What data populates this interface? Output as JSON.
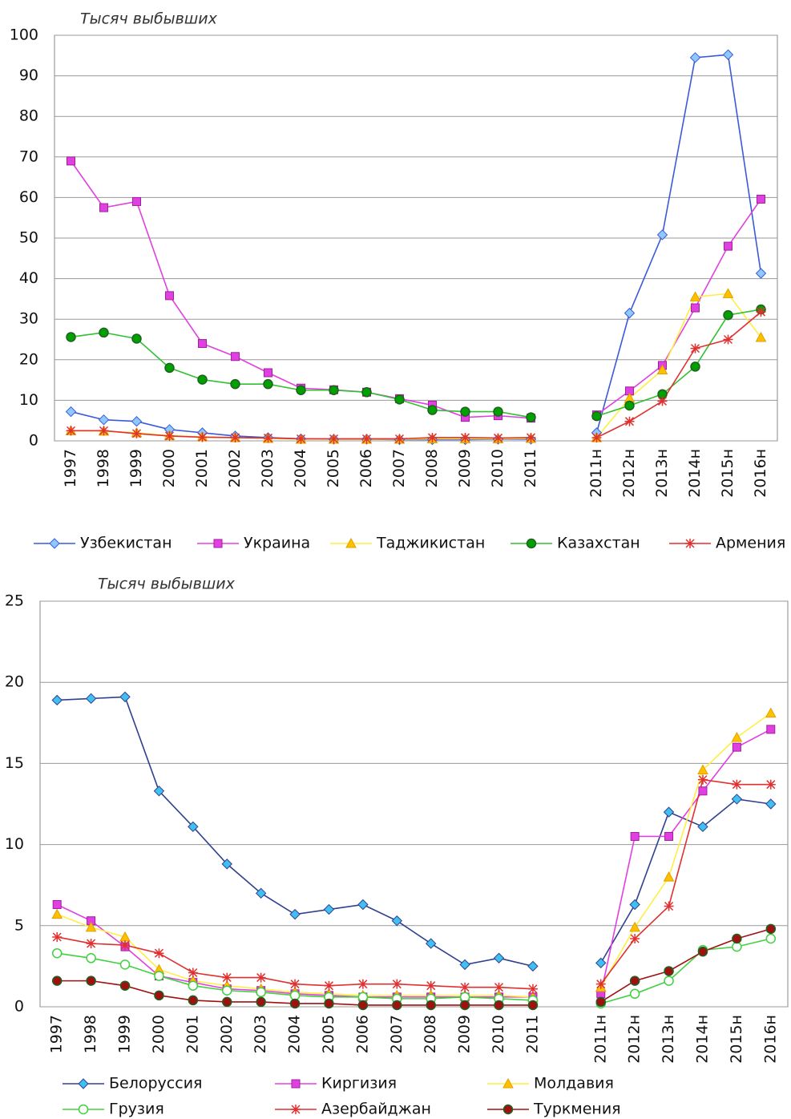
{
  "chart_data": [
    {
      "type": "line",
      "ylabel": "Тысяч выбывших",
      "categories": [
        "1997",
        "1998",
        "1999",
        "2000",
        "2001",
        "2002",
        "2003",
        "2004",
        "2005",
        "2006",
        "2007",
        "2008",
        "2009",
        "2010",
        "2011",
        null,
        "2011н",
        "2012н",
        "2013н",
        "2014н",
        "2015н",
        "2016н"
      ],
      "ylim": [
        0,
        100
      ],
      "yticks": [
        0,
        10,
        20,
        30,
        40,
        50,
        60,
        70,
        80,
        90,
        100
      ],
      "grid": true,
      "series": [
        {
          "name": "Узбекистан",
          "color": "#3a5ad8",
          "marker": "diamond",
          "marker_color": "#8ec8ff",
          "values": [
            7.2,
            5.2,
            4.8,
            2.8,
            2.0,
            1.2,
            0.8,
            0.5,
            0.4,
            0.4,
            0.3,
            0.3,
            0.3,
            0.4,
            0.4,
            null,
            2,
            31.5,
            50.8,
            94.5,
            95.2,
            41.3
          ]
        },
        {
          "name": "Украина",
          "color": "#e040e0",
          "marker": "square",
          "marker_color": "#e040e0",
          "values": [
            69,
            57.5,
            59,
            35.8,
            24,
            20.8,
            16.8,
            13,
            12.6,
            12,
            10.4,
            8.8,
            5.8,
            6.2,
            5.6,
            null,
            6.4,
            12.3,
            18.6,
            32.8,
            48,
            59.6
          ]
        },
        {
          "name": "Таджикистан",
          "color": "#ffee44",
          "marker": "triangle",
          "marker_color": "#ffc000",
          "values": [
            2.5,
            2.4,
            2,
            1.3,
            1.0,
            0.8,
            0.6,
            0.4,
            0.4,
            0.4,
            0.4,
            0.5,
            0.5,
            0.5,
            0.6,
            null,
            0.8,
            10.5,
            17.5,
            35.5,
            36.3,
            25.5
          ]
        },
        {
          "name": "Казахстан",
          "color": "#30c030",
          "marker": "circle",
          "marker_color": "#00a000",
          "values": [
            25.6,
            26.7,
            25.2,
            18,
            15.1,
            14,
            14,
            12.5,
            12.5,
            12,
            10.2,
            7.6,
            7.2,
            7.2,
            5.8,
            null,
            6.1,
            8.7,
            11.5,
            18.3,
            31,
            32.4
          ]
        },
        {
          "name": "Армения",
          "color": "#e03030",
          "marker": "star",
          "marker_color": "#e03030",
          "values": [
            2.5,
            2.5,
            1.8,
            1.2,
            0.9,
            0.8,
            0.7,
            0.5,
            0.5,
            0.5,
            0.5,
            0.8,
            0.8,
            0.7,
            0.8,
            null,
            0.8,
            4.8,
            9.8,
            22.8,
            25,
            31.8
          ]
        }
      ]
    },
    {
      "type": "line",
      "ylabel": "Тысяч выбывших",
      "categories": [
        "1997",
        "1998",
        "1999",
        "2000",
        "2001",
        "2002",
        "2003",
        "2004",
        "2005",
        "2006",
        "2007",
        "2008",
        "2009",
        "2010",
        "2011",
        null,
        "2011н",
        "2012н",
        "2013н",
        "2014н",
        "2015н",
        "2016н"
      ],
      "ylim": [
        0,
        25
      ],
      "yticks": [
        0,
        5,
        10,
        15,
        20,
        25
      ],
      "grid": true,
      "series": [
        {
          "name": "Белоруссия",
          "color": "#304090",
          "marker": "diamond",
          "marker_color": "#40c0f0",
          "values": [
            18.9,
            19,
            19.1,
            13.3,
            11.1,
            8.8,
            7,
            5.7,
            6,
            6.3,
            5.3,
            3.9,
            2.6,
            3,
            2.5,
            null,
            2.7,
            6.3,
            12,
            11.1,
            12.8,
            12.5
          ]
        },
        {
          "name": "Киргизия",
          "color": "#e040e0",
          "marker": "square",
          "marker_color": "#e040e0",
          "values": [
            6.3,
            5.3,
            3.7,
            1.9,
            1.5,
            1.1,
            1,
            0.8,
            0.7,
            0.6,
            0.6,
            0.6,
            0.6,
            0.6,
            0.6,
            null,
            0.8,
            10.5,
            10.5,
            13.3,
            16,
            17.1
          ]
        },
        {
          "name": "Молдавия",
          "color": "#ffee44",
          "marker": "triangle",
          "marker_color": "#ffc000",
          "values": [
            5.7,
            4.9,
            4.3,
            2.3,
            1.6,
            1.3,
            1.1,
            0.9,
            0.8,
            0.7,
            0.7,
            0.7,
            0.7,
            0.7,
            0.6,
            null,
            1.2,
            4.9,
            8,
            14.6,
            16.6,
            18.1
          ]
        },
        {
          "name": "Грузия",
          "color": "#40d040",
          "marker": "circle",
          "marker_color": "#ffffff",
          "values": [
            3.3,
            3,
            2.6,
            1.9,
            1.3,
            1,
            0.9,
            0.7,
            0.6,
            0.6,
            0.5,
            0.5,
            0.6,
            0.5,
            0.4,
            null,
            0.2,
            0.8,
            1.6,
            3.5,
            3.7,
            4.2
          ]
        },
        {
          "name": "Азербайджан",
          "color": "#e03030",
          "marker": "star",
          "marker_color": "#e03030",
          "values": [
            4.3,
            3.9,
            3.8,
            3.3,
            2.1,
            1.8,
            1.8,
            1.4,
            1.3,
            1.4,
            1.4,
            1.3,
            1.2,
            1.2,
            1.1,
            null,
            1.4,
            4.2,
            6.2,
            14,
            13.7,
            13.7
          ]
        },
        {
          "name": "Туркмения",
          "color": "#a01010",
          "marker": "circle",
          "marker_color": "#a01010",
          "values": [
            1.6,
            1.6,
            1.3,
            0.7,
            0.4,
            0.3,
            0.3,
            0.2,
            0.2,
            0.1,
            0.1,
            0.1,
            0.1,
            0.1,
            0.1,
            null,
            0.3,
            1.6,
            2.2,
            3.4,
            4.2,
            4.8
          ]
        }
      ]
    }
  ]
}
